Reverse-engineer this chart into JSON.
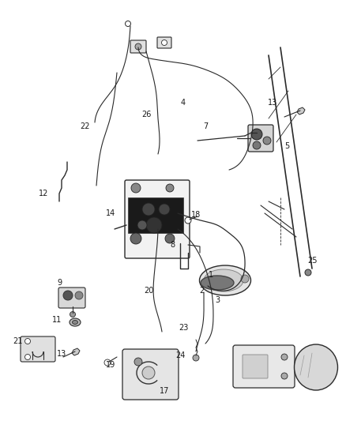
{
  "bg_color": "#ffffff",
  "line_color": "#2a2a2a",
  "label_color": "#1a1a1a",
  "label_fontsize": 7.0,
  "fig_width": 4.38,
  "fig_height": 5.33,
  "dpi": 100
}
